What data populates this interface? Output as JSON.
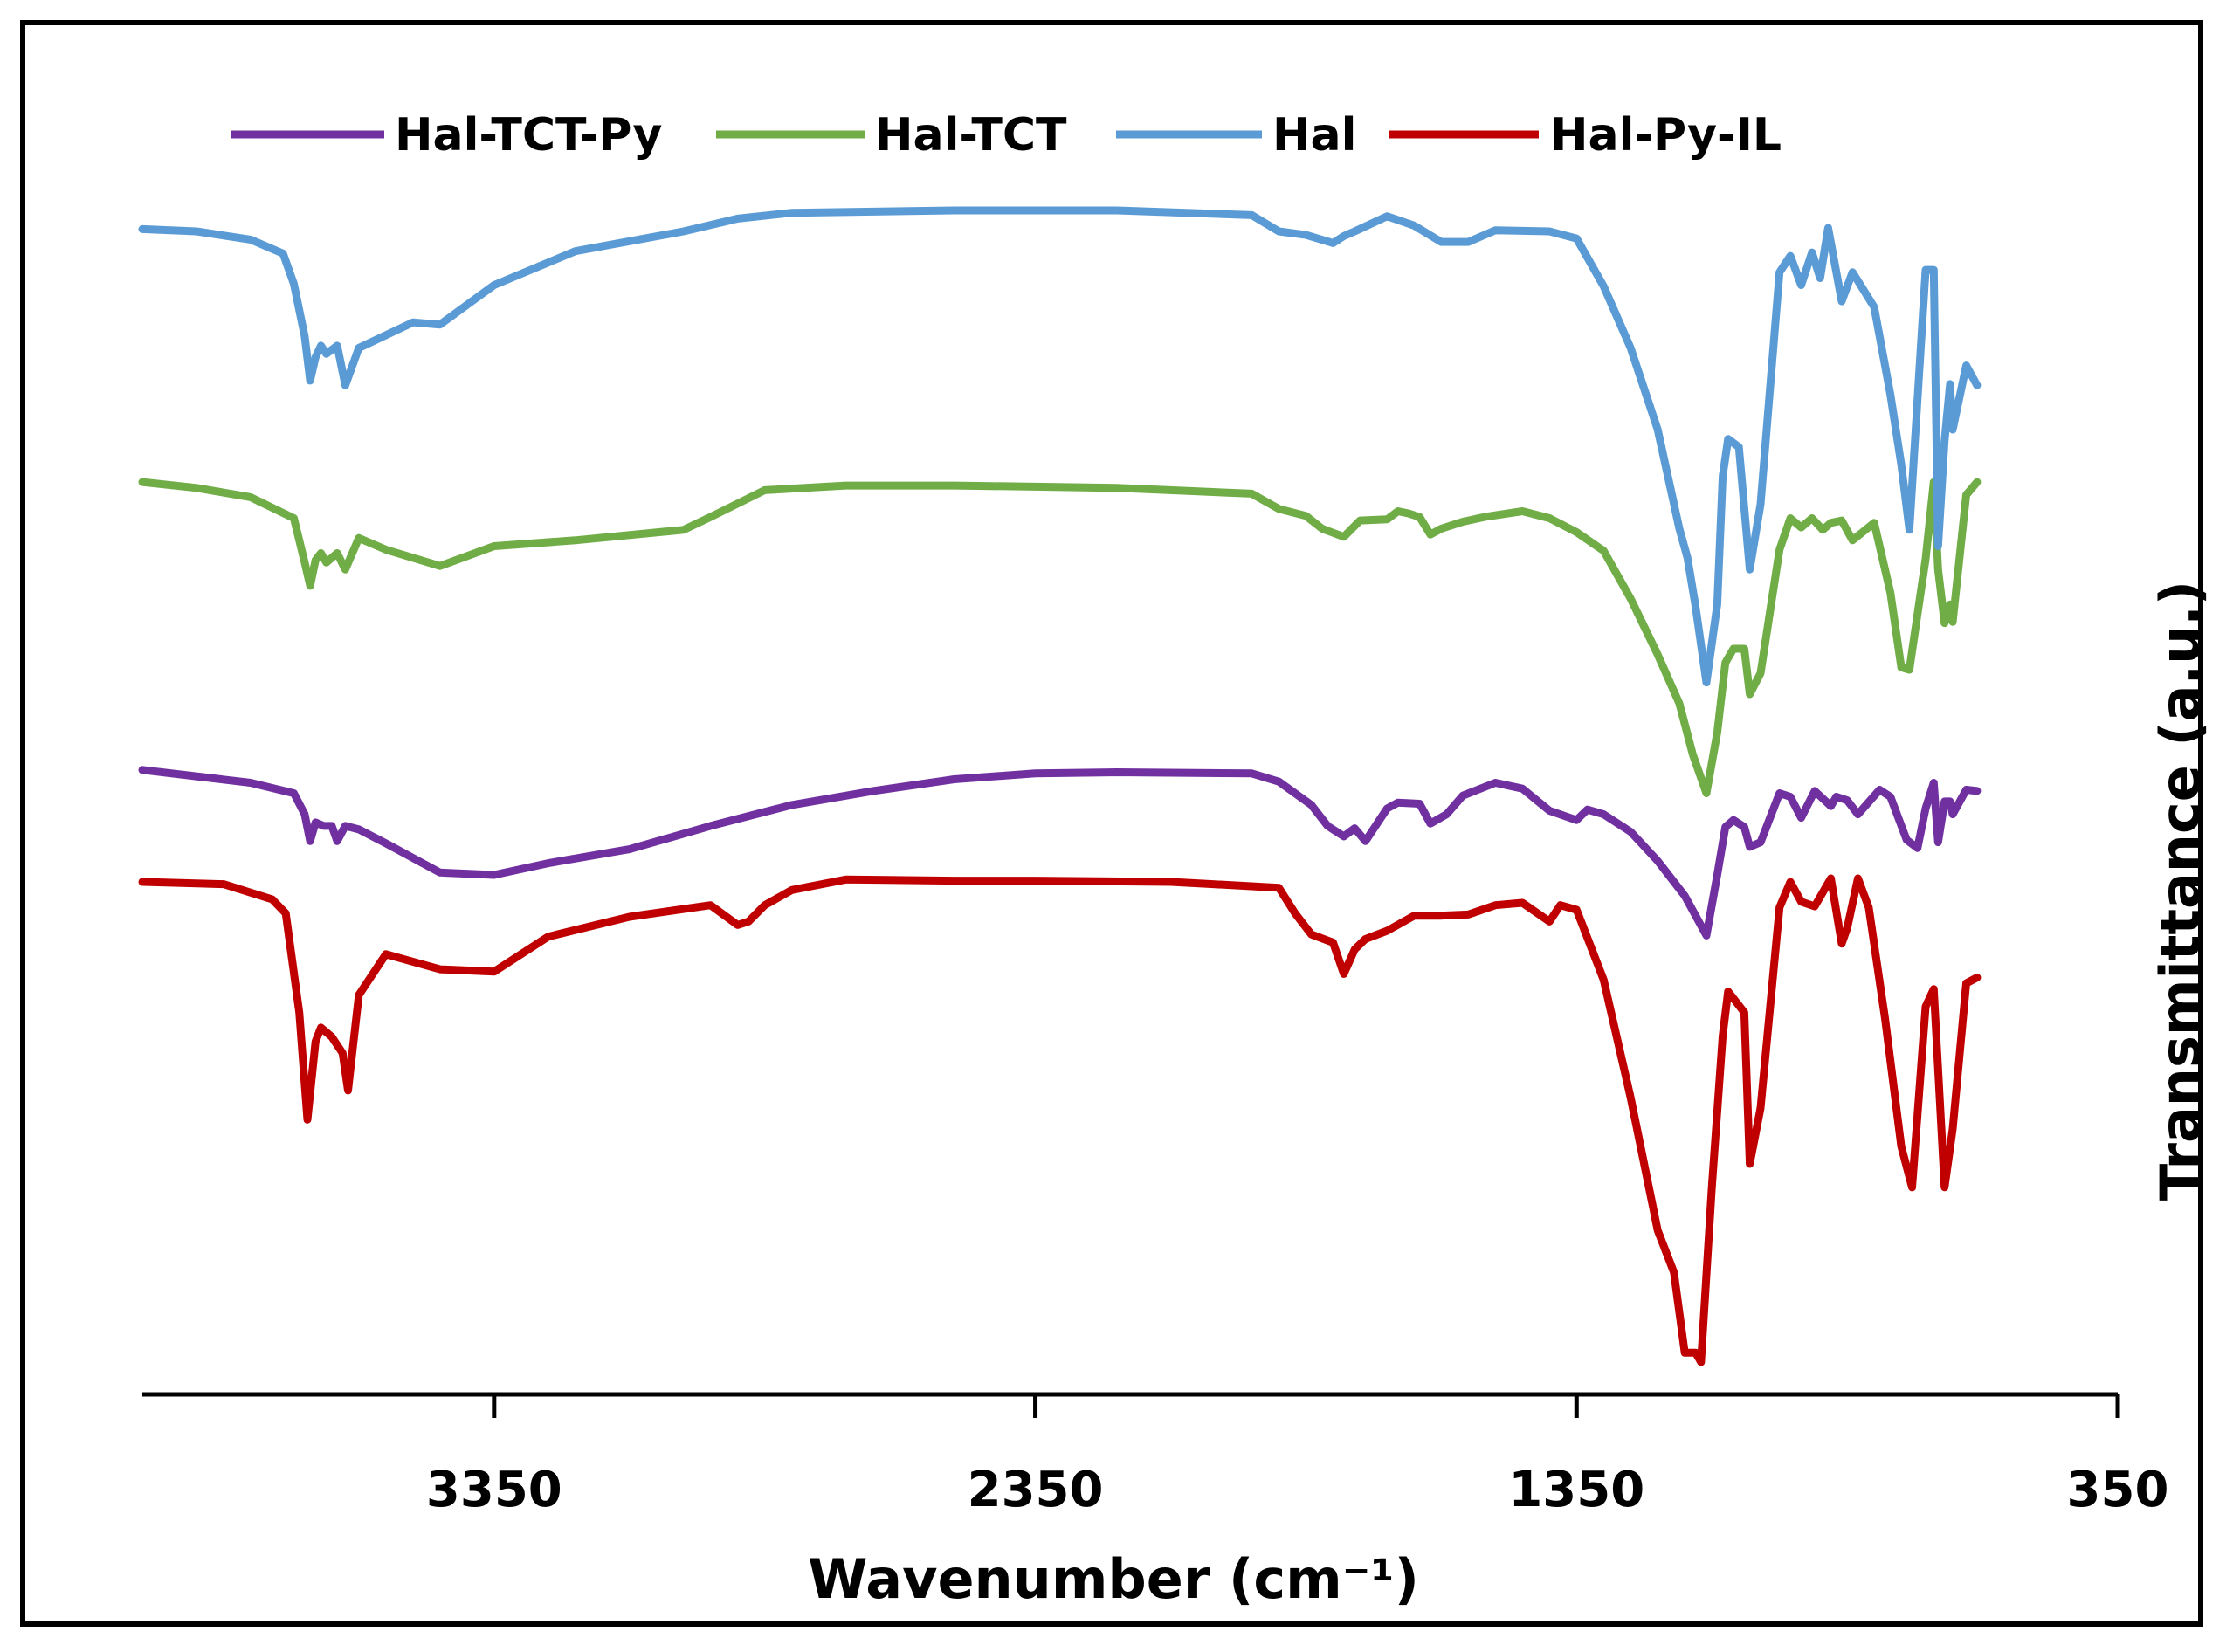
{
  "chart_data": {
    "type": "line",
    "title": "",
    "xlabel": "Wavenumber (cm⁻¹)",
    "ylabel": "Transmittance (a.u.)",
    "xlim": [
      4000,
      350
    ],
    "x_reversed": true,
    "ylim": [
      0,
      1000
    ],
    "y_ticks_shown": false,
    "x_ticks": [
      3350,
      2350,
      1350,
      350
    ],
    "x_tick_labels": [
      "3350",
      "2350",
      "1350",
      "350"
    ],
    "legend_position": "top",
    "legend": [
      "Hal-TCT-Py",
      "Hal-TCT",
      "Hal",
      "Hal-Py-IL"
    ],
    "series": [
      {
        "name": "Hal-TCT-Py",
        "color": "#7030A0",
        "points": [
          [
            4000,
            508
          ],
          [
            3800,
            497
          ],
          [
            3720,
            488
          ],
          [
            3700,
            470
          ],
          [
            3690,
            447
          ],
          [
            3680,
            463
          ],
          [
            3665,
            460
          ],
          [
            3650,
            460
          ],
          [
            3640,
            447
          ],
          [
            3625,
            460
          ],
          [
            3600,
            457
          ],
          [
            3550,
            445
          ],
          [
            3450,
            420
          ],
          [
            3350,
            418
          ],
          [
            3250,
            428
          ],
          [
            3100,
            440
          ],
          [
            2950,
            460
          ],
          [
            2800,
            478
          ],
          [
            2650,
            490
          ],
          [
            2500,
            500
          ],
          [
            2350,
            505
          ],
          [
            2200,
            506
          ],
          [
            1950,
            505
          ],
          [
            1900,
            498
          ],
          [
            1840,
            478
          ],
          [
            1810,
            460
          ],
          [
            1780,
            451
          ],
          [
            1760,
            458
          ],
          [
            1740,
            447
          ],
          [
            1700,
            475
          ],
          [
            1680,
            480
          ],
          [
            1640,
            479
          ],
          [
            1620,
            462
          ],
          [
            1590,
            470
          ],
          [
            1560,
            486
          ],
          [
            1500,
            497
          ],
          [
            1450,
            492
          ],
          [
            1400,
            473
          ],
          [
            1350,
            465
          ],
          [
            1330,
            474
          ],
          [
            1300,
            470
          ],
          [
            1250,
            455
          ],
          [
            1200,
            430
          ],
          [
            1150,
            400
          ],
          [
            1110,
            366
          ],
          [
            1090,
            418
          ],
          [
            1075,
            459
          ],
          [
            1060,
            465
          ],
          [
            1040,
            459
          ],
          [
            1030,
            442
          ],
          [
            1010,
            446
          ],
          [
            975,
            488
          ],
          [
            955,
            485
          ],
          [
            935,
            467
          ],
          [
            910,
            490
          ],
          [
            880,
            477
          ],
          [
            870,
            485
          ],
          [
            850,
            482
          ],
          [
            830,
            470
          ],
          [
            790,
            491
          ],
          [
            770,
            485
          ],
          [
            740,
            448
          ],
          [
            720,
            441
          ],
          [
            705,
            475
          ],
          [
            690,
            497
          ],
          [
            682,
            446
          ],
          [
            670,
            481
          ],
          [
            660,
            481
          ],
          [
            655,
            470
          ],
          [
            630,
            491
          ],
          [
            610,
            490
          ]
        ]
      },
      {
        "name": "Hal-TCT",
        "color": "#70AD47",
        "points": [
          [
            4000,
            755
          ],
          [
            3900,
            750
          ],
          [
            3800,
            742
          ],
          [
            3720,
            724
          ],
          [
            3700,
            686
          ],
          [
            3690,
            666
          ],
          [
            3680,
            688
          ],
          [
            3670,
            694
          ],
          [
            3660,
            686
          ],
          [
            3640,
            694
          ],
          [
            3625,
            680
          ],
          [
            3600,
            707
          ],
          [
            3550,
            697
          ],
          [
            3450,
            683
          ],
          [
            3350,
            700
          ],
          [
            3200,
            705
          ],
          [
            3000,
            714
          ],
          [
            2950,
            725
          ],
          [
            2850,
            748
          ],
          [
            2700,
            752
          ],
          [
            2500,
            752
          ],
          [
            2350,
            751
          ],
          [
            2200,
            750
          ],
          [
            1950,
            745
          ],
          [
            1900,
            732
          ],
          [
            1850,
            726
          ],
          [
            1820,
            715
          ],
          [
            1780,
            708
          ],
          [
            1750,
            722
          ],
          [
            1700,
            723
          ],
          [
            1680,
            730
          ],
          [
            1660,
            728
          ],
          [
            1640,
            725
          ],
          [
            1620,
            710
          ],
          [
            1600,
            715
          ],
          [
            1560,
            721
          ],
          [
            1520,
            725
          ],
          [
            1450,
            730
          ],
          [
            1400,
            724
          ],
          [
            1350,
            712
          ],
          [
            1300,
            696
          ],
          [
            1250,
            655
          ],
          [
            1200,
            607
          ],
          [
            1160,
            565
          ],
          [
            1135,
            521
          ],
          [
            1110,
            488
          ],
          [
            1090,
            540
          ],
          [
            1075,
            600
          ],
          [
            1060,
            612
          ],
          [
            1040,
            612
          ],
          [
            1030,
            573
          ],
          [
            1010,
            591
          ],
          [
            975,
            697
          ],
          [
            955,
            724
          ],
          [
            935,
            716
          ],
          [
            915,
            724
          ],
          [
            895,
            714
          ],
          [
            880,
            720
          ],
          [
            860,
            722
          ],
          [
            840,
            705
          ],
          [
            800,
            720
          ],
          [
            770,
            660
          ],
          [
            750,
            596
          ],
          [
            735,
            594
          ],
          [
            705,
            689
          ],
          [
            690,
            755
          ],
          [
            682,
            680
          ],
          [
            670,
            634
          ],
          [
            660,
            650
          ],
          [
            655,
            635
          ],
          [
            630,
            744
          ],
          [
            610,
            755
          ]
        ]
      },
      {
        "name": "Hal",
        "color": "#5B9BD5",
        "points": [
          [
            4000,
            972
          ],
          [
            3900,
            970
          ],
          [
            3800,
            963
          ],
          [
            3740,
            951
          ],
          [
            3720,
            925
          ],
          [
            3700,
            880
          ],
          [
            3690,
            842
          ],
          [
            3680,
            862
          ],
          [
            3670,
            872
          ],
          [
            3660,
            865
          ],
          [
            3640,
            872
          ],
          [
            3625,
            838
          ],
          [
            3600,
            870
          ],
          [
            3500,
            892
          ],
          [
            3450,
            890
          ],
          [
            3350,
            924
          ],
          [
            3200,
            953
          ],
          [
            3000,
            970
          ],
          [
            2900,
            981
          ],
          [
            2800,
            986
          ],
          [
            2500,
            988
          ],
          [
            2350,
            988
          ],
          [
            2200,
            988
          ],
          [
            1950,
            984
          ],
          [
            1900,
            970
          ],
          [
            1850,
            967
          ],
          [
            1800,
            960
          ],
          [
            1780,
            966
          ],
          [
            1760,
            970
          ],
          [
            1700,
            983
          ],
          [
            1650,
            975
          ],
          [
            1600,
            961
          ],
          [
            1550,
            961
          ],
          [
            1500,
            971
          ],
          [
            1400,
            970
          ],
          [
            1350,
            964
          ],
          [
            1300,
            923
          ],
          [
            1250,
            870
          ],
          [
            1200,
            800
          ],
          [
            1160,
            715
          ],
          [
            1145,
            690
          ],
          [
            1130,
            648
          ],
          [
            1110,
            583
          ],
          [
            1090,
            650
          ],
          [
            1080,
            760
          ],
          [
            1070,
            792
          ],
          [
            1050,
            785
          ],
          [
            1030,
            680
          ],
          [
            1010,
            736
          ],
          [
            975,
            935
          ],
          [
            955,
            949
          ],
          [
            935,
            924
          ],
          [
            915,
            952
          ],
          [
            900,
            930
          ],
          [
            885,
            973
          ],
          [
            860,
            910
          ],
          [
            840,
            935
          ],
          [
            800,
            905
          ],
          [
            770,
            830
          ],
          [
            750,
            770
          ],
          [
            735,
            714
          ],
          [
            705,
            937
          ],
          [
            690,
            937
          ],
          [
            682,
            700
          ],
          [
            670,
            790
          ],
          [
            660,
            839
          ],
          [
            655,
            800
          ],
          [
            630,
            855
          ],
          [
            610,
            838
          ]
        ]
      },
      {
        "name": "Hal-Py-IL",
        "color": "#C00000",
        "points": [
          [
            4000,
            412
          ],
          [
            3850,
            410
          ],
          [
            3760,
            397
          ],
          [
            3735,
            385
          ],
          [
            3710,
            300
          ],
          [
            3695,
            208
          ],
          [
            3680,
            275
          ],
          [
            3670,
            287
          ],
          [
            3650,
            279
          ],
          [
            3630,
            265
          ],
          [
            3620,
            233
          ],
          [
            3600,
            315
          ],
          [
            3550,
            350
          ],
          [
            3450,
            337
          ],
          [
            3350,
            335
          ],
          [
            3250,
            365
          ],
          [
            3100,
            382
          ],
          [
            2950,
            392
          ],
          [
            2900,
            375
          ],
          [
            2880,
            378
          ],
          [
            2850,
            392
          ],
          [
            2800,
            405
          ],
          [
            2700,
            414
          ],
          [
            2500,
            413
          ],
          [
            2350,
            413
          ],
          [
            2100,
            412
          ],
          [
            1900,
            407
          ],
          [
            1870,
            385
          ],
          [
            1840,
            367
          ],
          [
            1800,
            360
          ],
          [
            1780,
            333
          ],
          [
            1760,
            354
          ],
          [
            1740,
            363
          ],
          [
            1700,
            370
          ],
          [
            1650,
            383
          ],
          [
            1600,
            383
          ],
          [
            1550,
            384
          ],
          [
            1500,
            392
          ],
          [
            1450,
            394
          ],
          [
            1400,
            378
          ],
          [
            1380,
            392
          ],
          [
            1350,
            388
          ],
          [
            1300,
            328
          ],
          [
            1250,
            227
          ],
          [
            1200,
            113
          ],
          [
            1170,
            77
          ],
          [
            1150,
            8
          ],
          [
            1130,
            8
          ],
          [
            1120,
            0
          ],
          [
            1100,
            150
          ],
          [
            1080,
            280
          ],
          [
            1070,
            318
          ],
          [
            1040,
            300
          ],
          [
            1030,
            170
          ],
          [
            1010,
            218
          ],
          [
            975,
            390
          ],
          [
            955,
            412
          ],
          [
            935,
            395
          ],
          [
            910,
            391
          ],
          [
            880,
            415
          ],
          [
            860,
            359
          ],
          [
            850,
            372
          ],
          [
            830,
            415
          ],
          [
            810,
            390
          ],
          [
            780,
            295
          ],
          [
            750,
            185
          ],
          [
            730,
            150
          ],
          [
            705,
            305
          ],
          [
            690,
            320
          ],
          [
            670,
            150
          ],
          [
            655,
            200
          ],
          [
            630,
            325
          ],
          [
            610,
            330
          ]
        ]
      }
    ]
  }
}
